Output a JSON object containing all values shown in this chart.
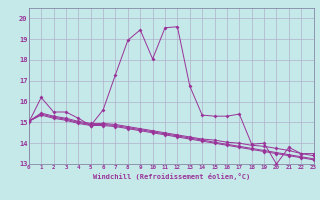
{
  "xlabel": "Windchill (Refroidissement éolien,°C)",
  "background_color": "#c5e8e8",
  "grid_color": "#b0b0cc",
  "line_color": "#993399",
  "x": [
    0,
    1,
    2,
    3,
    4,
    5,
    6,
    7,
    8,
    9,
    10,
    11,
    12,
    13,
    14,
    15,
    16,
    17,
    18,
    19,
    20,
    21,
    22,
    23
  ],
  "series1": [
    15.0,
    16.2,
    15.5,
    15.5,
    15.2,
    14.85,
    15.6,
    17.3,
    18.95,
    19.45,
    18.05,
    19.55,
    19.6,
    16.75,
    15.35,
    15.3,
    15.3,
    15.4,
    13.95,
    14.0,
    13.0,
    13.8,
    13.5,
    13.5
  ],
  "series2": [
    15.05,
    15.45,
    15.3,
    15.2,
    15.05,
    14.95,
    14.95,
    14.9,
    14.8,
    14.7,
    14.6,
    14.5,
    14.4,
    14.3,
    14.2,
    14.15,
    14.05,
    14.0,
    13.9,
    13.85,
    13.75,
    13.65,
    13.5,
    13.4
  ],
  "series3": [
    15.05,
    15.4,
    15.25,
    15.15,
    15.0,
    14.9,
    14.9,
    14.85,
    14.75,
    14.65,
    14.55,
    14.45,
    14.35,
    14.25,
    14.15,
    14.05,
    13.95,
    13.85,
    13.75,
    13.65,
    13.55,
    13.45,
    13.35,
    13.25
  ],
  "series4": [
    15.05,
    15.35,
    15.2,
    15.1,
    14.95,
    14.85,
    14.85,
    14.8,
    14.7,
    14.6,
    14.5,
    14.4,
    14.3,
    14.2,
    14.1,
    14.0,
    13.9,
    13.8,
    13.7,
    13.6,
    13.5,
    13.4,
    13.3,
    13.2
  ],
  "ylim": [
    13.0,
    20.5
  ],
  "xlim": [
    0,
    23
  ],
  "yticks": [
    13,
    14,
    15,
    16,
    17,
    18,
    19,
    20
  ],
  "xticks": [
    0,
    1,
    2,
    3,
    4,
    5,
    6,
    7,
    8,
    9,
    10,
    11,
    12,
    13,
    14,
    15,
    16,
    17,
    18,
    19,
    20,
    21,
    22,
    23
  ],
  "marker": "D",
  "markersize": 2.0,
  "linewidth": 0.7
}
